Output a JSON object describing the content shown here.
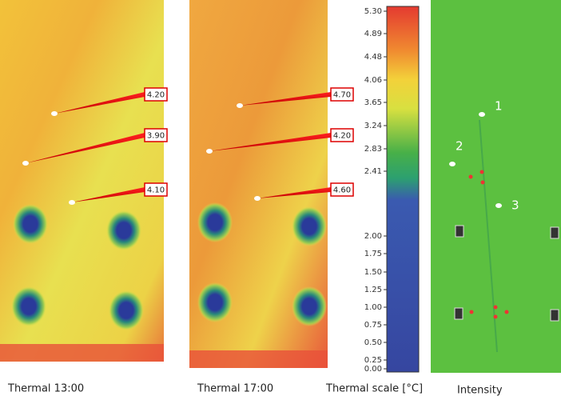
{
  "panels": [
    {
      "caption": "Thermal 13:00",
      "callouts": [
        "4.20",
        "3.90",
        "4.10"
      ]
    },
    {
      "caption": "Thermal 17:00",
      "callouts": [
        "4.70",
        "4.20",
        "4.60"
      ]
    }
  ],
  "colorbar": {
    "caption": "Thermal scale [°C]",
    "ticks": [
      "5.30",
      "4.89",
      "4.48",
      "4.06",
      "3.65",
      "3.24",
      "2.83",
      "2.41",
      "2.00",
      "1.75",
      "1.50",
      "1.25",
      "1.00",
      "0.75",
      "0.50",
      "0.25",
      "0.00"
    ]
  },
  "intensity": {
    "caption": "Intensity",
    "points": [
      "1",
      "2",
      "3"
    ]
  }
}
